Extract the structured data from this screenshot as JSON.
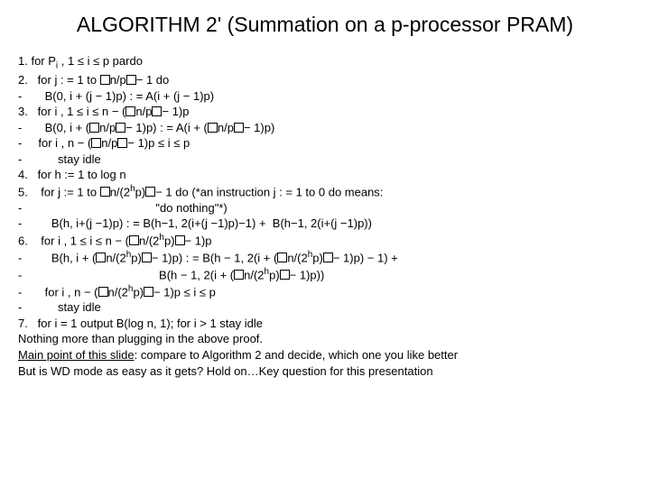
{
  "title": "ALGORITHM 2' (Summation on a p-processor PRAM)",
  "lines": {
    "l1a": "1. for P",
    "l1b": " , 1 ≤ i ≤ p pardo",
    "l2a": "2.   for j : = 1 to ",
    "l2b": "n/p",
    "l2c": "− 1 do",
    "l3": "-       B(0, i + (j − 1)p) : = A(i + (j − 1)p)",
    "l4a": "3.   for i , 1 ≤ i ≤ n − (",
    "l4b": "n/p",
    "l4c": "− 1)p",
    "l5a": "-       B(0, i + (",
    "l5b": "n/p",
    "l5c": "− 1)p) : = A(i + (",
    "l5d": "n/p",
    "l5e": "− 1)p)",
    "l6a": "-     for i , n − (",
    "l6b": "n/p",
    "l6c": "− 1)p ≤ i ≤ p",
    "l7": "-           stay idle",
    "l8": "4.   for h := 1 to log n",
    "l9a": "5.    for j := 1 to ",
    "l9b": "n/(2",
    "l9c": "p)",
    "l9d": "− 1 do (*an instruction j : = 1 to 0 do means:",
    "l10": "-                                         \"do nothing\"*)",
    "l11": "-         B(h, i+(j −1)p) : = B(h−1, 2(i+(j −1)p)−1) +  B(h−1, 2(i+(j −1)p))",
    "l12a": "6.    for i , 1 ≤ i ≤ n − (",
    "l12b": "n/(2",
    "l12c": "p)",
    "l12d": "− 1)p",
    "l13a": "-         B(h, i + (",
    "l13b": "n/(2",
    "l13c": "p)",
    "l13d": "− 1)p) : = B(h − 1, 2(i + (",
    "l13e": "n/(2",
    "l13f": "p)",
    "l13g": "− 1)p) − 1) +",
    "l14a": "-                                          B(h − 1, 2(i + (",
    "l14b": "n/(2",
    "l14c": "p)",
    "l14d": "− 1)p))",
    "l15a": "-       for i , n − (",
    "l15b": "n/(2",
    "l15c": "p)",
    "l15d": "− 1)p ≤ i ≤ p",
    "l16": "-           stay idle",
    "l17": "7.   for i = 1 output B(log n, 1); for i > 1 stay idle",
    "l18": "Nothing more than plugging in the above proof.",
    "l19a": "Main point of this slide",
    "l19b": ": ",
    "l19c": "compare to Algorithm 2 and decide, which one you like better",
    "l20": "But is WD mode as easy as it gets? Hold on…Key question for this presentation"
  }
}
